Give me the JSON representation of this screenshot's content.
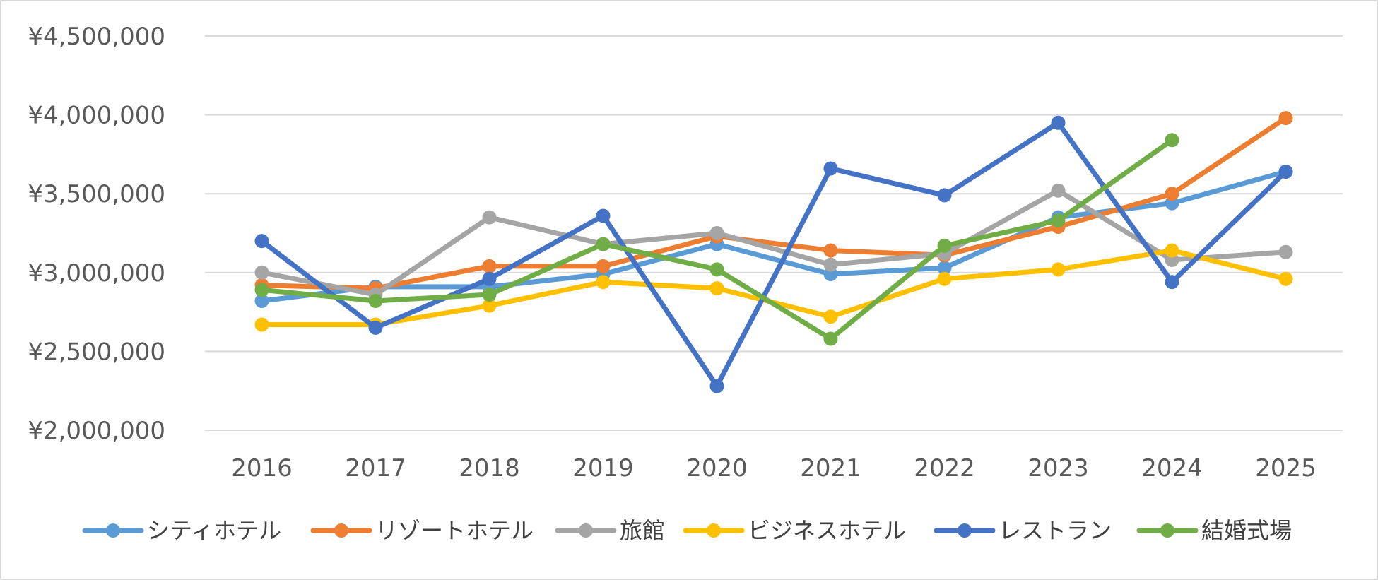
{
  "chart_data": {
    "type": "line",
    "title": "",
    "xlabel": "",
    "ylabel": "",
    "ylim": [
      2000000,
      4500000
    ],
    "y_ticks": [
      2000000,
      2500000,
      3000000,
      3500000,
      4000000,
      4500000
    ],
    "y_tick_labels": [
      "¥2,000,000",
      "¥2,500,000",
      "¥3,000,000",
      "¥3,500,000",
      "¥4,000,000",
      "¥4,500,000"
    ],
    "grid": true,
    "legend_position": "bottom",
    "categories": [
      "2016",
      "2017",
      "2018",
      "2019",
      "2020",
      "2021",
      "2022",
      "2023",
      "2024",
      "2025"
    ],
    "series": [
      {
        "name": "シティホテル",
        "color": "#5B9BD5",
        "values": [
          2820000,
          2910000,
          2910000,
          2990000,
          3180000,
          2990000,
          3030000,
          3350000,
          3440000,
          3640000
        ]
      },
      {
        "name": "リゾートホテル",
        "color": "#ED7D31",
        "values": [
          2920000,
          2900000,
          3040000,
          3040000,
          3230000,
          3140000,
          3110000,
          3290000,
          3500000,
          3980000
        ]
      },
      {
        "name": "旅館",
        "color": "#A5A5A5",
        "values": [
          3000000,
          2860000,
          3350000,
          3180000,
          3250000,
          3050000,
          3120000,
          3520000,
          3080000,
          3130000
        ]
      },
      {
        "name": "ビジネスホテル",
        "color": "#FFC000",
        "values": [
          2670000,
          2670000,
          2790000,
          2940000,
          2900000,
          2720000,
          2960000,
          3020000,
          3140000,
          2960000
        ]
      },
      {
        "name": "レストラン",
        "color": "#4472C4",
        "values": [
          3200000,
          2650000,
          2960000,
          3360000,
          2280000,
          3660000,
          3490000,
          3950000,
          2940000,
          3640000
        ]
      },
      {
        "name": "結婚式場",
        "color": "#70AD47",
        "values": [
          2890000,
          2820000,
          2860000,
          3180000,
          3020000,
          2580000,
          3170000,
          3330000,
          3840000,
          null
        ]
      }
    ]
  }
}
